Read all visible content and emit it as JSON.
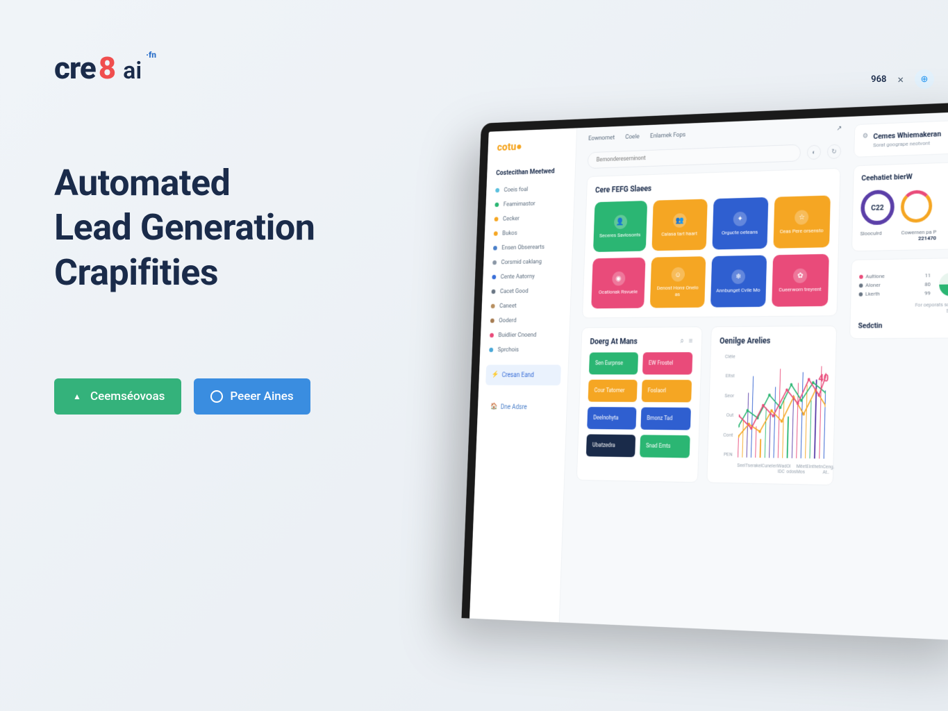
{
  "logo": {
    "part1": "cre",
    "part2": "8",
    "part3": "ai",
    "accent": "·fn"
  },
  "headline": {
    "l1": "Automated",
    "l2": "Lead Generation",
    "l3": "Crapifities"
  },
  "cta": {
    "primary": "Ceemséovoas",
    "secondary": "Peeer Aines"
  },
  "topstrip": {
    "num": "968",
    "close": "×",
    "badge": "⊕"
  },
  "topbar": {
    "tabs": [
      "Eownomet",
      "Coele",
      "Enlamek Fops"
    ],
    "share": "↗"
  },
  "search": {
    "placeholder": "Bemondereserninont"
  },
  "sidebar": {
    "logo": "cotu",
    "heading": "Costecithan Meetwed",
    "items": [
      {
        "label": "Coeis foal",
        "color": "#5bc0de"
      },
      {
        "label": "Feamimastor",
        "color": "#2bb673"
      },
      {
        "label": "Cecker",
        "color": "#f5a623"
      },
      {
        "label": "Bukos",
        "color": "#f5a623"
      },
      {
        "label": "Ensen Obserearts",
        "color": "#4a7fc9"
      },
      {
        "label": "Corsmid caklang",
        "color": "#8a97a6"
      },
      {
        "label": "Cente Aatorny",
        "color": "#3a6fd8"
      },
      {
        "label": "Cacet Good",
        "color": "#6a7684"
      },
      {
        "label": "Caneet",
        "color": "#b89060"
      },
      {
        "label": "Ooderd",
        "color": "#a67c52"
      },
      {
        "label": "Buidlier Cnoend",
        "color": "#e94b7a"
      },
      {
        "label": "Sprchois",
        "color": "#4aa8d8"
      }
    ],
    "action1": "Cresan Eand",
    "action2": "Dne Adsre"
  },
  "panel1": {
    "title": "Cere FEFG Slaees",
    "tiles": [
      {
        "label": "Seceres Savlosonts",
        "color": "#2bb673",
        "icon": "👤"
      },
      {
        "label": "Calasa tart haart",
        "color": "#f5a623",
        "icon": "👥"
      },
      {
        "label": "Orgucte oeteans",
        "color": "#2f5fd0",
        "icon": "✦"
      },
      {
        "label": "Ceas Pere orsensto",
        "color": "#f5a623",
        "icon": "☆"
      },
      {
        "label": "Ocationak Rsvuele",
        "color": "#e94b7a",
        "icon": "◉"
      },
      {
        "label": "Denost Hons Onelo as",
        "color": "#f5a623",
        "icon": "☺"
      },
      {
        "label": "Annbunget Cvile Mo",
        "color": "#2f5fd0",
        "icon": "❄"
      },
      {
        "label": "Cueerworn treyrent",
        "color": "#e94b7a",
        "icon": "✿"
      }
    ]
  },
  "panel2": {
    "title": "Doerg At Mans",
    "pills": [
      {
        "label": "Sen Eurpnse",
        "color": "#2bb673"
      },
      {
        "label": "EW Frostel",
        "color": "#e94b7a"
      },
      {
        "label": "Cour Tatomer",
        "color": "#f5a623"
      },
      {
        "label": "Foslaorl",
        "color": "#f5a623"
      },
      {
        "label": "Deelnohyta",
        "color": "#2f5fd0"
      },
      {
        "label": "Bmonz Tad",
        "color": "#2f5fd0"
      },
      {
        "label": "Ubatzedra",
        "color": "#1a2b4a"
      },
      {
        "label": "Snad Emts",
        "color": "#2bb673"
      }
    ]
  },
  "rcards": {
    "c1": {
      "title": "Cemes Whiemakeran",
      "sub": "Sorat googrape neotvont"
    },
    "c2": {
      "title": "Ceehatiet bierW",
      "ring": "C22",
      "lbl1": "Slooculrd",
      "lbl2": "Cowernen pa P",
      "lbl2b": "221470"
    },
    "c3": {
      "rows": [
        {
          "label": "Aultione",
          "color": "#e94b7a",
          "val": "11"
        },
        {
          "label": "Aloner",
          "color": "#6a7684",
          "val": "80"
        },
        {
          "label": "Lkerth",
          "color": "#6a7684",
          "val": "99"
        }
      ],
      "side": "For oeporats sondons",
      "side2": "Seacter",
      "sed": "Sedctin"
    }
  },
  "chart": {
    "title": "Oenilge Arelies",
    "ylabels": [
      "Cléle",
      "Eltst",
      "Seor",
      "Out",
      "Cont",
      "PEN"
    ],
    "xlabels": [
      "Seel",
      "Tserakel",
      "Cuneleri",
      "Wad  IDC",
      "Ol odos",
      "Mêet  Mos",
      "Einthetn",
      "Ceng. At.."
    ],
    "tag": "40",
    "bars": {
      "heights": [
        20,
        35,
        62,
        78,
        30,
        18,
        48,
        42,
        68,
        85,
        58,
        40,
        60,
        72,
        82,
        70,
        55,
        75,
        88,
        65
      ],
      "colors": [
        "#e94b7a",
        "#f5a623",
        "#5b3fa8",
        "#2f5fd0",
        "#e94b7a",
        "#f5a623",
        "#2bb673",
        "#5b3fa8",
        "#2f5fd0",
        "#e94b7a",
        "#f5a623",
        "#2bb673",
        "#5b3fa8",
        "#e94b7a",
        "#2f5fd0",
        "#f5a623",
        "#2bb673",
        "#5b3fa8",
        "#e94b7a",
        "#2f5fd0"
      ]
    },
    "lines": {
      "l1": {
        "color": "#2bb673",
        "points": [
          [
            0,
            70
          ],
          [
            10,
            55
          ],
          [
            22,
            62
          ],
          [
            35,
            40
          ],
          [
            48,
            52
          ],
          [
            60,
            30
          ],
          [
            72,
            45
          ],
          [
            85,
            28
          ],
          [
            100,
            38
          ]
        ]
      },
      "l2": {
        "color": "#f5a623",
        "points": [
          [
            0,
            80
          ],
          [
            12,
            68
          ],
          [
            25,
            75
          ],
          [
            38,
            55
          ],
          [
            50,
            65
          ],
          [
            63,
            42
          ],
          [
            75,
            58
          ],
          [
            88,
            35
          ],
          [
            100,
            50
          ]
        ]
      },
      "l3": {
        "color": "#e94b7a",
        "points": [
          [
            0,
            60
          ],
          [
            15,
            72
          ],
          [
            28,
            50
          ],
          [
            40,
            60
          ],
          [
            55,
            35
          ],
          [
            68,
            48
          ],
          [
            80,
            25
          ],
          [
            92,
            40
          ],
          [
            100,
            20
          ]
        ]
      }
    }
  }
}
